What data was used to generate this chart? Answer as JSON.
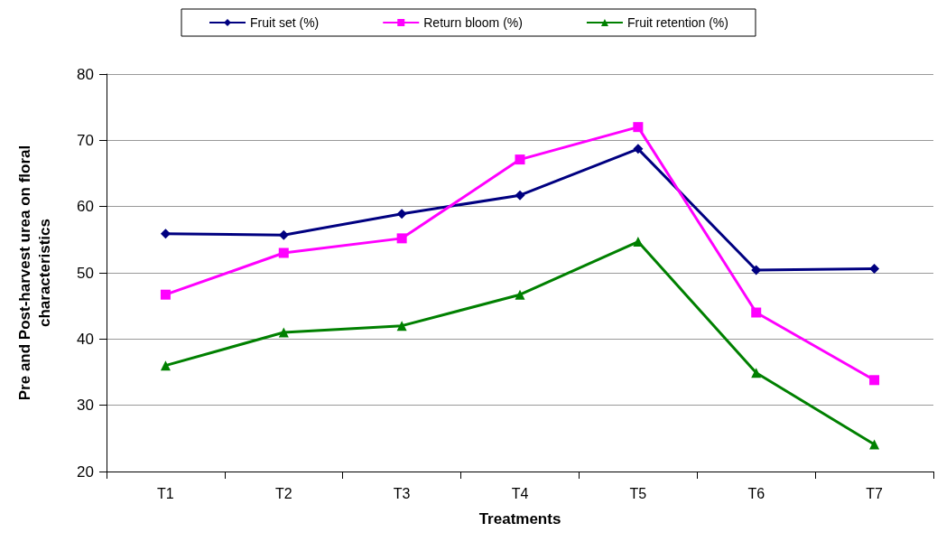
{
  "chart_data": {
    "type": "line",
    "xlabel": "Treatments",
    "ylabel": "Pre and Post-harvest urea on floral\ncharacteristics",
    "categories": [
      "T1",
      "T2",
      "T3",
      "T4",
      "T5",
      "T6",
      "T7"
    ],
    "series": [
      {
        "name": "Fruit set (%)",
        "color": "#000080",
        "marker": "diamond",
        "values": [
          55.9,
          55.7,
          58.9,
          61.7,
          68.7,
          50.4,
          50.6
        ]
      },
      {
        "name": "Return bloom (%)",
        "color": "#ff00ff",
        "marker": "square",
        "values": [
          46.7,
          53.0,
          55.2,
          67.1,
          72.0,
          44.0,
          33.8
        ]
      },
      {
        "name": "Fruit retention (%)",
        "color": "#008000",
        "marker": "triangle",
        "values": [
          36.0,
          41.0,
          42.0,
          46.7,
          54.7,
          34.9,
          24.1
        ]
      }
    ],
    "ylim": [
      20,
      80
    ],
    "yticks": [
      20,
      30,
      40,
      50,
      60,
      70,
      80
    ],
    "grid": "y",
    "legend": "top",
    "line_style": "solid"
  }
}
